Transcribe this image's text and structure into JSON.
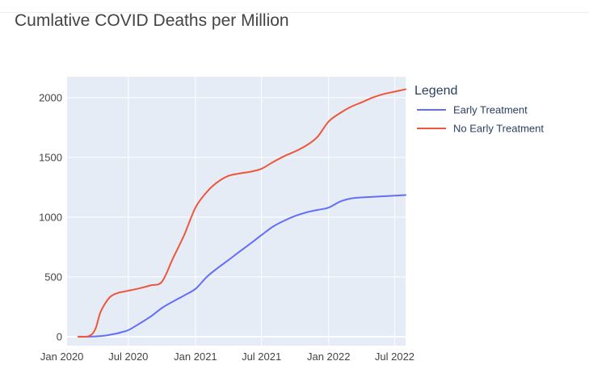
{
  "chart_data": {
    "type": "line",
    "title": "Cumlative COVID Deaths per Million",
    "xlabel": "",
    "ylabel": "",
    "x": [
      "2020-02-15",
      "2020-03-15",
      "2020-04-01",
      "2020-04-15",
      "2020-05-01",
      "2020-05-15",
      "2020-06-01",
      "2020-06-15",
      "2020-07-01",
      "2020-08-01",
      "2020-09-01",
      "2020-10-01",
      "2020-11-01",
      "2020-12-01",
      "2021-01-01",
      "2021-02-01",
      "2021-03-01",
      "2021-04-01",
      "2021-05-01",
      "2021-06-01",
      "2021-07-01",
      "2021-08-01",
      "2021-09-01",
      "2021-10-01",
      "2021-11-01",
      "2021-12-01",
      "2022-01-01",
      "2022-02-01",
      "2022-03-01",
      "2022-04-01",
      "2022-05-01",
      "2022-06-01",
      "2022-07-01",
      "2022-07-31"
    ],
    "series": [
      {
        "name": "Early Treatment",
        "color": "#636efa",
        "values": [
          0,
          0,
          2,
          5,
          10,
          18,
          28,
          40,
          55,
          110,
          170,
          240,
          295,
          345,
          400,
          500,
          570,
          640,
          710,
          780,
          850,
          920,
          970,
          1010,
          1040,
          1060,
          1080,
          1130,
          1155,
          1165,
          1170,
          1175,
          1180,
          1185
        ]
      },
      {
        "name": "No Early Treatment",
        "color": "#ef553b",
        "values": [
          0,
          5,
          60,
          200,
          290,
          340,
          365,
          375,
          385,
          405,
          430,
          460,
          660,
          850,
          1080,
          1210,
          1290,
          1345,
          1365,
          1380,
          1405,
          1460,
          1510,
          1550,
          1600,
          1670,
          1800,
          1870,
          1920,
          1960,
          2000,
          2030,
          2050,
          2070
        ]
      }
    ],
    "x_tick_labels": [
      "Jan 2020",
      "Jul 2020",
      "Jan 2021",
      "Jul 2021",
      "Jan 2022",
      "Jul 2022"
    ],
    "x_tick_dates": [
      "2020-01-01",
      "2020-07-01",
      "2021-01-01",
      "2021-07-01",
      "2022-01-01",
      "2022-07-01"
    ],
    "y_ticks": [
      0,
      500,
      1000,
      1500,
      2000
    ],
    "y_tick_labels": [
      "0",
      "500",
      "1000",
      "1500",
      "2000"
    ],
    "xlim": [
      "2020-01-15",
      "2022-07-31"
    ],
    "ylim": [
      -75,
      2175
    ],
    "grid": true,
    "legend": {
      "title": "Legend",
      "placement": "right"
    }
  },
  "colors": {
    "plot_background": "#e5ecf6",
    "grid": "#ffffff",
    "text": "#444444",
    "legend_text": "#2a3f5f"
  }
}
